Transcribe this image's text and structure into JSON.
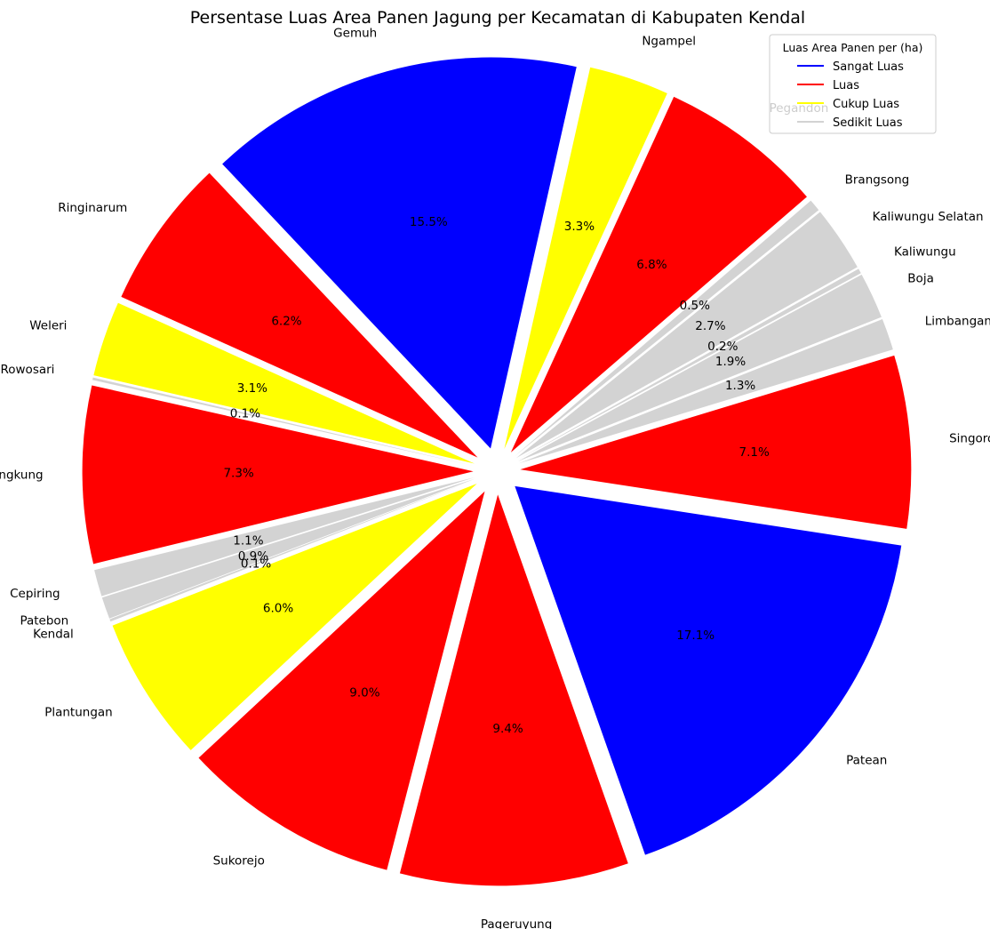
{
  "chart_data": {
    "type": "pie",
    "title": "Persentase Luas Area Panen Jagung per Kecamatan di Kabupaten Kendal",
    "legend": {
      "title": "Luas Area Panen per (ha)",
      "placement": "top-right",
      "entries": [
        {
          "label": "Sangat Luas",
          "color": "#0000ff"
        },
        {
          "label": "Luas",
          "color": "#ff0000"
        },
        {
          "label": "Cukup Luas",
          "color": "#ffff00"
        },
        {
          "label": "Sedikit Luas",
          "color": "#d3d3d3"
        }
      ]
    },
    "slices": [
      {
        "label": "Gemuh",
        "percent": 15.5,
        "pct_label": "15.5%",
        "group": "Sangat Luas",
        "color": "#0000ff"
      },
      {
        "label": "Ringinarum",
        "percent": 6.2,
        "pct_label": "6.2%",
        "group": "Luas",
        "color": "#ff0000"
      },
      {
        "label": "Weleri",
        "percent": 3.1,
        "pct_label": "3.1%",
        "group": "Cukup Luas",
        "color": "#ffff00"
      },
      {
        "label": "Rowosari",
        "percent": 0.1,
        "pct_label": "0.1%",
        "group": "Sedikit Luas",
        "color": "#d3d3d3"
      },
      {
        "label": "Kangkung",
        "percent": 7.3,
        "pct_label": "7.3%",
        "group": "Luas",
        "color": "#ff0000"
      },
      {
        "label": "Cepiring",
        "percent": 1.1,
        "pct_label": "1.1%",
        "group": "Sedikit Luas",
        "color": "#d3d3d3"
      },
      {
        "label": "Patebon",
        "percent": 0.9,
        "pct_label": "0.9%",
        "group": "Sedikit Luas",
        "color": "#d3d3d3"
      },
      {
        "label": "Kendal",
        "percent": 0.1,
        "pct_label": "0.1%",
        "group": "Sedikit Luas",
        "color": "#d3d3d3"
      },
      {
        "label": "Plantungan",
        "percent": 6.0,
        "pct_label": "6.0%",
        "group": "Cukup Luas",
        "color": "#ffff00"
      },
      {
        "label": "Sukorejo",
        "percent": 9.0,
        "pct_label": "9.0%",
        "group": "Luas",
        "color": "#ff0000"
      },
      {
        "label": "Pageruyung",
        "percent": 9.4,
        "pct_label": "9.4%",
        "group": "Luas",
        "color": "#ff0000"
      },
      {
        "label": "Patean",
        "percent": 17.1,
        "pct_label": "17.1%",
        "group": "Sangat Luas",
        "color": "#0000ff"
      },
      {
        "label": "Singorojo",
        "percent": 7.1,
        "pct_label": "7.1%",
        "group": "Luas",
        "color": "#ff0000"
      },
      {
        "label": "Limbangan",
        "percent": 1.3,
        "pct_label": "1.3%",
        "group": "Sedikit Luas",
        "color": "#d3d3d3"
      },
      {
        "label": "Boja",
        "percent": 1.9,
        "pct_label": "1.9%",
        "group": "Sedikit Luas",
        "color": "#d3d3d3"
      },
      {
        "label": "Kaliwungu",
        "percent": 0.2,
        "pct_label": "0.2%",
        "group": "Sedikit Luas",
        "color": "#d3d3d3"
      },
      {
        "label": "Kaliwungu Selatan",
        "percent": 2.7,
        "pct_label": "2.7%",
        "group": "Sedikit Luas",
        "color": "#d3d3d3"
      },
      {
        "label": "Brangsong",
        "percent": 0.5,
        "pct_label": "0.5%",
        "group": "Sedikit Luas",
        "color": "#d3d3d3"
      },
      {
        "label": "Pegandon",
        "percent": 6.8,
        "pct_label": "6.8%",
        "group": "Luas",
        "color": "#ff0000"
      },
      {
        "label": "Ngampel",
        "percent": 3.3,
        "pct_label": "3.3%",
        "group": "Cukup Luas",
        "color": "#ffff00"
      }
    ]
  }
}
